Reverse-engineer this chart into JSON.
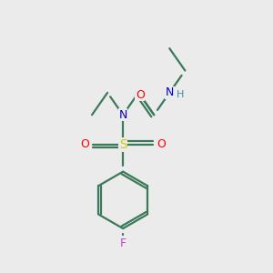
{
  "background_color": "#ebebeb",
  "bond_color": "#3a7a5a",
  "atom_colors": {
    "O": "#ff0000",
    "N": "#0000cc",
    "S": "#cccc00",
    "F": "#cc44cc",
    "H": "#4488aa"
  },
  "figsize": [
    3.0,
    3.0
  ],
  "dpi": 100
}
